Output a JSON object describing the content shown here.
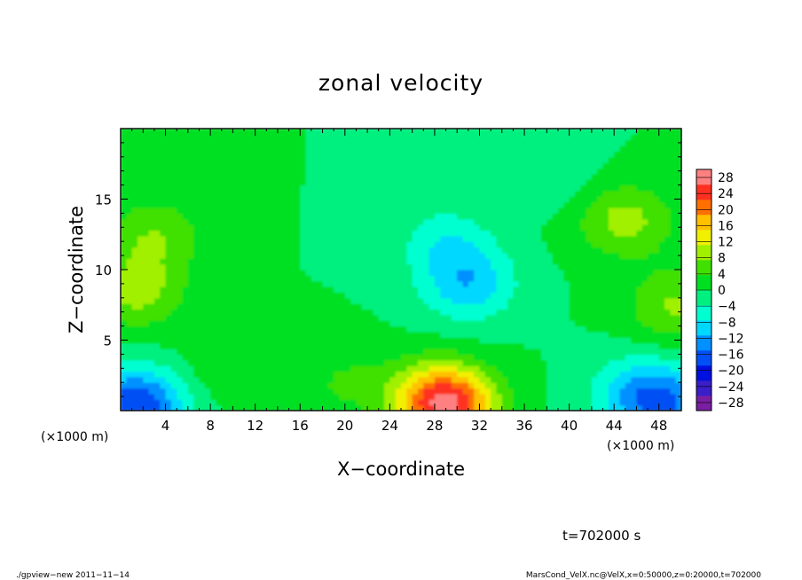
{
  "chart_data": {
    "type": "heatmap",
    "title": "zonal velocity",
    "xlabel": "X−coordinate",
    "ylabel": "Z−coordinate",
    "x_unit": "(×1000 m)",
    "x_unit_right": "(×1000 m)",
    "xlim": [
      0,
      50
    ],
    "ylim": [
      0,
      20
    ],
    "x_ticks": [
      4,
      8,
      12,
      16,
      20,
      24,
      28,
      32,
      36,
      40,
      44,
      48
    ],
    "y_ticks": [
      5,
      10,
      15
    ],
    "colorbar": {
      "levels": [
        28,
        24,
        20,
        16,
        12,
        8,
        4,
        0,
        -4,
        -8,
        -12,
        -16,
        -20,
        -24,
        -28
      ],
      "labels": [
        "28",
        "24",
        "20",
        "16",
        "12",
        "8",
        "4",
        "0",
        "−4",
        "−8",
        "−12",
        "−16",
        "−20",
        "−24",
        "−28"
      ],
      "range": [
        -30,
        30
      ],
      "colors": [
        "#7a1fa2",
        "#3a1fc8",
        "#0010e0",
        "#0050f5",
        "#0090ff",
        "#00d8ff",
        "#00ffd0",
        "#00f080",
        "#00e020",
        "#40e000",
        "#a0f000",
        "#f0f000",
        "#ffc000",
        "#ff7000",
        "#ff3020",
        "#ff8080"
      ]
    },
    "features": [
      {
        "x": 0.5,
        "z": 0.3,
        "value": -12
      },
      {
        "x": 2.5,
        "z": 0.6,
        "value": -8
      },
      {
        "x": 1.5,
        "z": 8.5,
        "value": 9
      },
      {
        "x": 3.0,
        "z": 12.5,
        "value": 7
      },
      {
        "x": 29.5,
        "z": 0.3,
        "value": 18
      },
      {
        "x": 28.0,
        "z": 1.0,
        "value": 12
      },
      {
        "x": 31.0,
        "z": 9.0,
        "value": -10
      },
      {
        "x": 29.0,
        "z": 12.0,
        "value": -6
      },
      {
        "x": 46.0,
        "z": 1.2,
        "value": -9
      },
      {
        "x": 49.0,
        "z": 0.5,
        "value": -11
      },
      {
        "x": 45.0,
        "z": 13.5,
        "value": 9
      },
      {
        "x": 49.5,
        "z": 7.5,
        "value": 8
      },
      {
        "x": 20.0,
        "z": 2.0,
        "value": 4
      },
      {
        "x": 9.0,
        "z": 3.0,
        "value": 3
      },
      {
        "x": 38.0,
        "z": 17.0,
        "value": -3
      }
    ],
    "background_value": 0
  },
  "annotations": {
    "time": "t=702000 s",
    "footer_left": "./gpview−new  2011−11−14",
    "footer_right": "MarsCond_VelX.nc@VelX,x=0:50000,z=0:20000,t=702000"
  }
}
